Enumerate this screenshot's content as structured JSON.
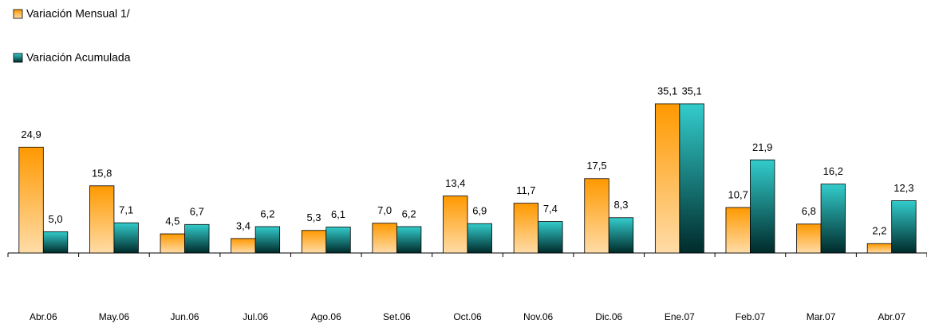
{
  "chart_data": {
    "type": "bar",
    "categories": [
      "Abr.06",
      "May.06",
      "Jun.06",
      "Jul.06",
      "Ago.06",
      "Set.06",
      "Oct.06",
      "Nov.06",
      "Dic.06",
      "Ene.07",
      "Feb.07",
      "Mar.07",
      "Abr.07"
    ],
    "series": [
      {
        "name": "Variación Mensual 1/",
        "color": "#ff9900",
        "values": [
          24.9,
          15.8,
          4.5,
          3.4,
          5.3,
          7.0,
          13.4,
          11.7,
          17.5,
          35.1,
          10.7,
          6.8,
          2.2
        ],
        "value_labels": [
          "24,9",
          "15,8",
          "4,5",
          "3,4",
          "5,3",
          "7,0",
          "13,4",
          "11,7",
          "17,5",
          "35,1",
          "10,7",
          "6,8",
          "2,2"
        ]
      },
      {
        "name": "Variación Acumulada",
        "color": "#33cccc",
        "values": [
          5.0,
          7.1,
          6.7,
          6.2,
          6.1,
          6.2,
          6.9,
          7.4,
          8.3,
          35.1,
          21.9,
          16.2,
          12.3
        ],
        "value_labels": [
          "5,0",
          "7,1",
          "6,7",
          "6,2",
          "6,1",
          "6,2",
          "6,9",
          "7,4",
          "8,3",
          "35,1",
          "21,9",
          "16,2",
          "12,3"
        ]
      }
    ],
    "legend": "top-left"
  }
}
